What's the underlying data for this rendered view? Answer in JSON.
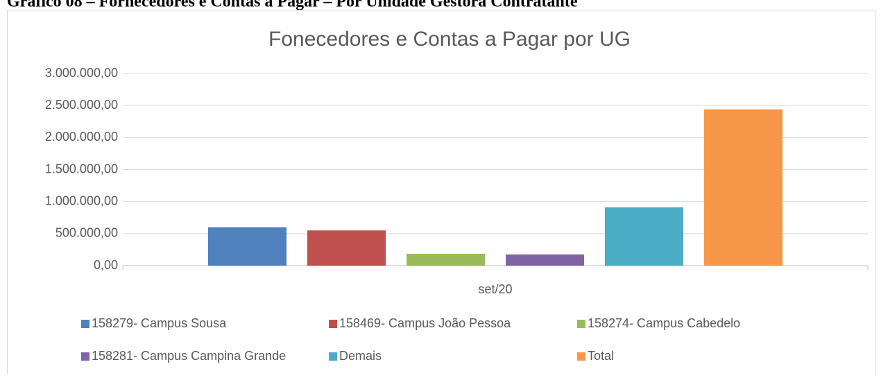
{
  "caption": "Gráfico 08 – Fornecedores e Contas a Pagar – Por Unidade Gestora Contratante",
  "chart_data": {
    "type": "bar",
    "title": "Fonecedores e Contas a Pagar por UG",
    "categories": [
      "set/20"
    ],
    "series": [
      {
        "name": "158279- Campus Sousa",
        "color": "#4f81bd",
        "values": [
          600000
        ]
      },
      {
        "name": "158469- Campus João Pessoa",
        "color": "#c0504d",
        "values": [
          550000
        ]
      },
      {
        "name": "158274- Campus Cabedelo",
        "color": "#9bbb59",
        "values": [
          185000
        ]
      },
      {
        "name": "158281- Campus Campina Grande",
        "color": "#8064a2",
        "values": [
          175000
        ]
      },
      {
        "name": "Demais",
        "color": "#4bacc6",
        "values": [
          910000
        ]
      },
      {
        "name": "Total",
        "color": "#f79646",
        "values": [
          2440000
        ]
      }
    ],
    "ylim": [
      0,
      3000000
    ],
    "yticks": [
      {
        "value": 0,
        "label": "0,00"
      },
      {
        "value": 500000,
        "label": "500.000,00"
      },
      {
        "value": 1000000,
        "label": "1.000.000,00"
      },
      {
        "value": 1500000,
        "label": "1.500.000,00"
      },
      {
        "value": 2000000,
        "label": "2.000.000,00"
      },
      {
        "value": 2500000,
        "label": "2.500.000,00"
      },
      {
        "value": 3000000,
        "label": "3.000.000,00"
      }
    ],
    "grid": true,
    "legend": "bottom"
  }
}
